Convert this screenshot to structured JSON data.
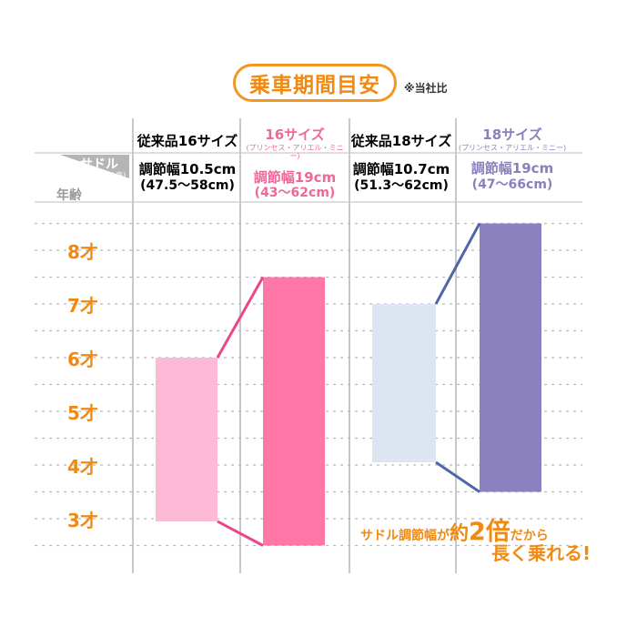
{
  "header": {
    "title": "乗車期間目安",
    "note": "※当社比",
    "corner_saddle": "サドル",
    "corner_saddle_sub": "(サドル高)",
    "corner_age": "年齢"
  },
  "columns": [
    {
      "name": "従来品16サイズ",
      "sub": "",
      "adjust": "調節幅10.5cm",
      "range": "(47.5〜58cm)",
      "color": "#222222"
    },
    {
      "name": "16サイズ",
      "sub": "(プリンセス・アリエル・ミニー)",
      "adjust": "調節幅19cm",
      "range": "(43〜62cm)",
      "color": "#f0679a"
    },
    {
      "name": "従来品18サイズ",
      "sub": "",
      "adjust": "調節幅10.7cm",
      "range": "(51.3〜62cm)",
      "color": "#222222"
    },
    {
      "name": "18サイズ",
      "sub": "(プリンセス・アリエル・ミニー)",
      "adjust": "調節幅19cm",
      "range": "(47〜66cm)",
      "color": "#8a80bd"
    }
  ],
  "annotation": {
    "part1": "サドル調節幅が",
    "part2": "約",
    "part3": "2倍",
    "part4": "だから",
    "line2": "長く乗れる!"
  },
  "chart_data": {
    "type": "bar",
    "subtype": "floating-range",
    "y_axis": "age",
    "ylim": [
      2.5,
      8.75
    ],
    "yticks": [
      3,
      4,
      5,
      6,
      7,
      8
    ],
    "ytick_labels": [
      "3才",
      "4才",
      "5才",
      "6才",
      "7才",
      "8才"
    ],
    "grid": "dashed horizontal",
    "categories": [
      "従来品16サイズ",
      "16サイズ",
      "従来品18サイズ",
      "18サイズ"
    ],
    "ranges": [
      {
        "category": "従来品16サイズ",
        "low": 2.95,
        "high": 6.0
      },
      {
        "category": "16サイズ",
        "low": 2.5,
        "high": 7.5
      },
      {
        "category": "従来品18サイズ",
        "low": 4.05,
        "high": 7.0
      },
      {
        "category": "18サイズ",
        "low": 3.5,
        "high": 8.5
      }
    ],
    "colors": [
      "#fdbad6",
      "#ff77a6",
      "#dde5f3",
      "#8a80bd"
    ],
    "connector_colors": [
      "#e8478a",
      "#4f67a8"
    ]
  }
}
